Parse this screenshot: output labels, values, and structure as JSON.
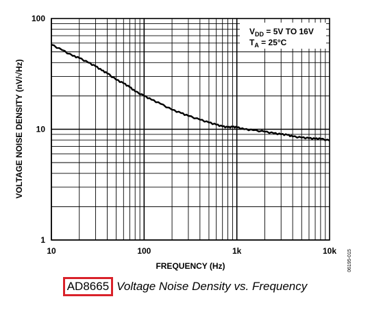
{
  "chart_data": {
    "type": "line",
    "x_scale": "log",
    "y_scale": "log",
    "xlim": [
      10,
      10000
    ],
    "ylim": [
      1,
      100
    ],
    "xlabel": "FREQUENCY (Hz)",
    "ylabel": "VOLTAGE NOISE DENSITY (nV/√Hz)",
    "x_tick_labels": [
      "10",
      "100",
      "1k",
      "10k"
    ],
    "x_tick_values": [
      10,
      100,
      1000,
      10000
    ],
    "y_tick_labels": [
      "1",
      "10",
      "100"
    ],
    "y_tick_values": [
      1,
      10,
      100
    ],
    "grid": true,
    "annotation": {
      "line1_main": "V",
      "line1_sub": "DD",
      "line1_rest": " = 5V TO 16V",
      "line2_main": "T",
      "line2_sub": "A",
      "line2_rest": " = 25°C"
    },
    "series": [
      {
        "x": [
          10,
          13,
          17,
          20,
          25,
          30,
          35,
          40,
          50,
          60,
          70,
          80,
          100,
          120,
          150,
          200,
          250,
          300,
          400,
          500,
          600,
          700,
          800,
          900,
          1000,
          1200,
          1500,
          2000,
          2500,
          3000,
          3500,
          4000,
          5000,
          6000,
          7000,
          8000,
          10000
        ],
        "y": [
          58,
          52,
          46,
          44,
          40,
          37,
          34,
          32,
          28,
          26,
          24,
          22,
          20,
          18.5,
          17,
          15,
          14,
          13.2,
          12.2,
          11.5,
          11,
          10.6,
          10.4,
          10.5,
          10.4,
          10,
          9.8,
          9.5,
          9.2,
          9,
          8.9,
          8.6,
          8.4,
          8.3,
          8.2,
          8.2,
          7.9
        ],
        "color": "#000000"
      }
    ]
  },
  "side_code": "06195-015",
  "caption": {
    "part": "AD8665",
    "text": "Voltage Noise Density vs. Frequency",
    "box_color": "#d9222a"
  }
}
